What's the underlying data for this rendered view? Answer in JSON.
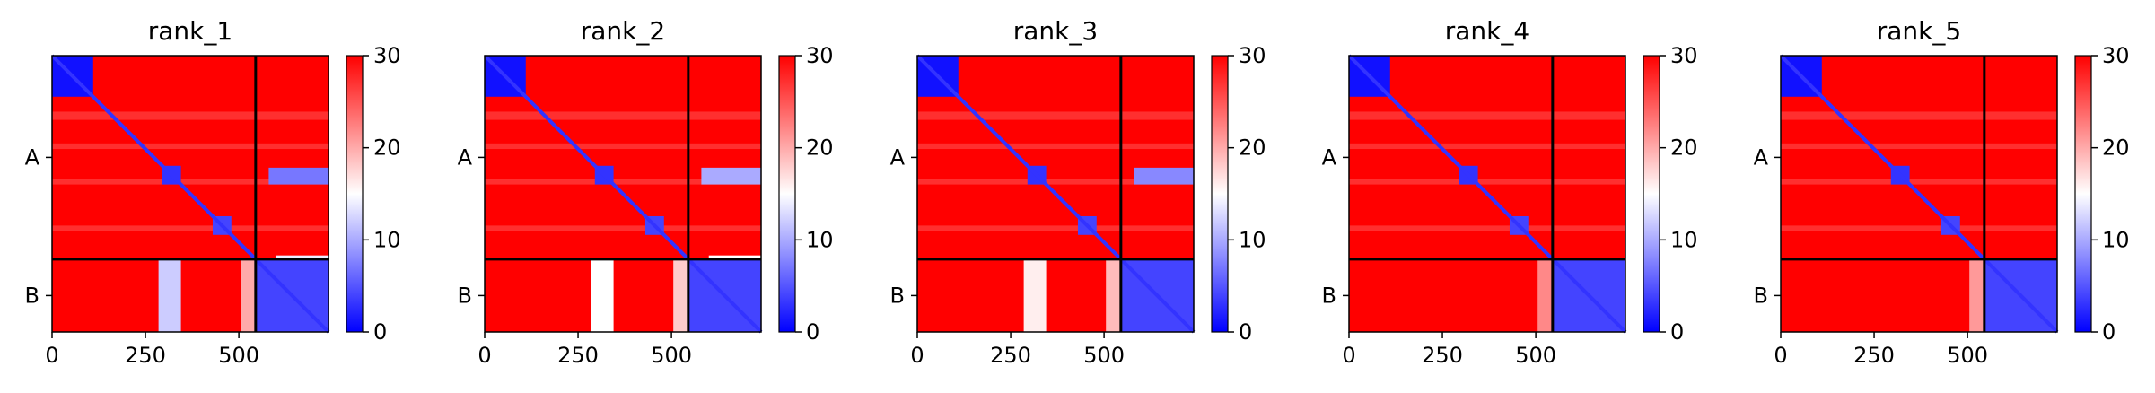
{
  "figure": {
    "colormap": {
      "name": "bwr",
      "low_color": "#0000ff",
      "mid_color": "#ffffff",
      "high_color": "#ff0000",
      "vmin": 0,
      "vmax": 30,
      "ticks": [
        "0",
        "10",
        "20",
        "30"
      ]
    },
    "chain_divider_residue": 545,
    "total_residues": 740,
    "x_ticks": [
      "0",
      "250",
      "500"
    ],
    "y_ticks": [
      "A",
      "B"
    ]
  },
  "chart_data": [
    {
      "type": "heatmap",
      "title": "rank_1",
      "x": {
        "range": [
          0,
          740
        ],
        "ticks": [
          0,
          250,
          500
        ]
      },
      "y": {
        "categories": [
          "A",
          "B"
        ],
        "chain_boundary": 545
      },
      "color_range": [
        0,
        30
      ],
      "blocks": [
        {
          "r0": 0,
          "r1": 110,
          "c0": 0,
          "c1": 110,
          "value": 1
        },
        {
          "r0": 295,
          "r1": 345,
          "c0": 295,
          "c1": 345,
          "value": 3
        },
        {
          "r0": 430,
          "r1": 480,
          "c0": 430,
          "c1": 480,
          "value": 4
        },
        {
          "r0": 545,
          "r1": 740,
          "c0": 545,
          "c1": 740,
          "value": 4
        },
        {
          "r0": 300,
          "r1": 345,
          "c0": 580,
          "c1": 740,
          "value": 7
        },
        {
          "r0": 545,
          "r1": 740,
          "c0": 285,
          "c1": 345,
          "value": 12
        },
        {
          "r0": 545,
          "r1": 740,
          "c0": 505,
          "c1": 545,
          "value": 20
        },
        {
          "r0": 535,
          "r1": 545,
          "c0": 600,
          "c1": 740,
          "value": 14
        }
      ]
    },
    {
      "type": "heatmap",
      "title": "rank_2",
      "x": {
        "range": [
          0,
          740
        ],
        "ticks": [
          0,
          250,
          500
        ]
      },
      "y": {
        "categories": [
          "A",
          "B"
        ],
        "chain_boundary": 545
      },
      "color_range": [
        0,
        30
      ],
      "blocks": [
        {
          "r0": 0,
          "r1": 110,
          "c0": 0,
          "c1": 110,
          "value": 1
        },
        {
          "r0": 295,
          "r1": 345,
          "c0": 295,
          "c1": 345,
          "value": 3
        },
        {
          "r0": 430,
          "r1": 480,
          "c0": 430,
          "c1": 480,
          "value": 4
        },
        {
          "r0": 545,
          "r1": 740,
          "c0": 545,
          "c1": 740,
          "value": 4
        },
        {
          "r0": 300,
          "r1": 345,
          "c0": 580,
          "c1": 740,
          "value": 10
        },
        {
          "r0": 545,
          "r1": 740,
          "c0": 285,
          "c1": 345,
          "value": 15
        },
        {
          "r0": 545,
          "r1": 740,
          "c0": 505,
          "c1": 545,
          "value": 18
        },
        {
          "r0": 535,
          "r1": 545,
          "c0": 600,
          "c1": 740,
          "value": 15
        }
      ]
    },
    {
      "type": "heatmap",
      "title": "rank_3",
      "x": {
        "range": [
          0,
          740
        ],
        "ticks": [
          0,
          250,
          500
        ]
      },
      "y": {
        "categories": [
          "A",
          "B"
        ],
        "chain_boundary": 545
      },
      "color_range": [
        0,
        30
      ],
      "blocks": [
        {
          "r0": 0,
          "r1": 110,
          "c0": 0,
          "c1": 110,
          "value": 1
        },
        {
          "r0": 295,
          "r1": 345,
          "c0": 295,
          "c1": 345,
          "value": 3
        },
        {
          "r0": 430,
          "r1": 480,
          "c0": 430,
          "c1": 480,
          "value": 4
        },
        {
          "r0": 545,
          "r1": 740,
          "c0": 545,
          "c1": 740,
          "value": 4
        },
        {
          "r0": 300,
          "r1": 345,
          "c0": 580,
          "c1": 740,
          "value": 8
        },
        {
          "r0": 545,
          "r1": 740,
          "c0": 285,
          "c1": 345,
          "value": 16
        },
        {
          "r0": 545,
          "r1": 740,
          "c0": 505,
          "c1": 545,
          "value": 19
        }
      ]
    },
    {
      "type": "heatmap",
      "title": "rank_4",
      "x": {
        "range": [
          0,
          740
        ],
        "ticks": [
          0,
          250,
          500
        ]
      },
      "y": {
        "categories": [
          "A",
          "B"
        ],
        "chain_boundary": 545
      },
      "color_range": [
        0,
        30
      ],
      "blocks": [
        {
          "r0": 0,
          "r1": 110,
          "c0": 0,
          "c1": 110,
          "value": 1
        },
        {
          "r0": 295,
          "r1": 345,
          "c0": 295,
          "c1": 345,
          "value": 3
        },
        {
          "r0": 430,
          "r1": 480,
          "c0": 430,
          "c1": 480,
          "value": 4
        },
        {
          "r0": 545,
          "r1": 740,
          "c0": 545,
          "c1": 740,
          "value": 4
        },
        {
          "r0": 545,
          "r1": 740,
          "c0": 505,
          "c1": 545,
          "value": 22
        }
      ]
    },
    {
      "type": "heatmap",
      "title": "rank_5",
      "x": {
        "range": [
          0,
          740
        ],
        "ticks": [
          0,
          250,
          500
        ]
      },
      "y": {
        "categories": [
          "A",
          "B"
        ],
        "chain_boundary": 545
      },
      "color_range": [
        0,
        30
      ],
      "blocks": [
        {
          "r0": 0,
          "r1": 110,
          "c0": 0,
          "c1": 110,
          "value": 1
        },
        {
          "r0": 295,
          "r1": 345,
          "c0": 295,
          "c1": 345,
          "value": 3
        },
        {
          "r0": 430,
          "r1": 480,
          "c0": 430,
          "c1": 480,
          "value": 4
        },
        {
          "r0": 545,
          "r1": 740,
          "c0": 545,
          "c1": 740,
          "value": 4
        },
        {
          "r0": 545,
          "r1": 740,
          "c0": 505,
          "c1": 545,
          "value": 21
        }
      ]
    }
  ]
}
